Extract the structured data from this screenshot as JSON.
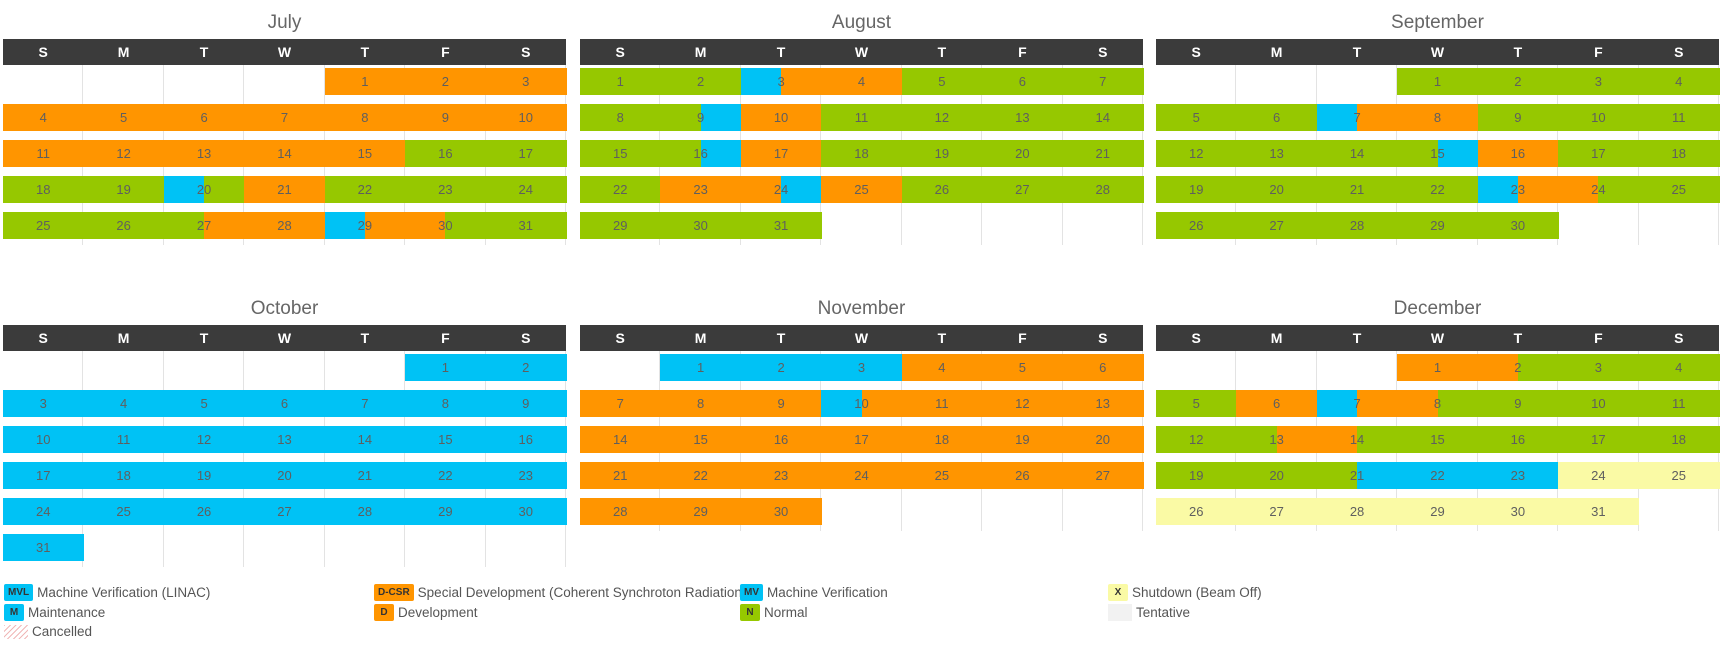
{
  "day_headers": [
    "S",
    "M",
    "T",
    "W",
    "T",
    "F",
    "S"
  ],
  "colors": {
    "N": "#96c800",
    "D": "#ff9500",
    "M": "#00c2f5",
    "X": "#fafaa5"
  },
  "months": [
    {
      "name": "July",
      "start": 4,
      "days": 31,
      "slots": "DDDDDDDDDDDDDDDDDDDDDDDDDDDDDDNNNNNNNNMNDDNNNNNNNNNNNDDDMDDNNNNNNNNN"
    },
    {
      "name": "August",
      "start": 0,
      "days": 31,
      "slots": "NNNNMDDDNNNNNNNNNMDDNNNNNNNNNNNMDDNNNNNNNNNNDDDMDDNNNNNNNNNNNNNMDDN"
    },
    {
      "name": "September",
      "start": 3,
      "days": 30,
      "slots": "NNNNNNNNNNNNMDDDNNNNNNNNNNNNNMDDNNNNNNNNNNNNMDDNNNNNNNNNNNNNNMMMMM"
    },
    {
      "name": "October",
      "start": 5,
      "days": 31,
      "slots": "MMMMMMMMMMMMMMMMMMMMMMMMMMMMMMMMMMMMMMMMMMMMMMMMMMMMMMMMMMMMMMMM"
    },
    {
      "name": "November",
      "start": 1,
      "days": 30,
      "slots": "MMMMMMDDDDDDDDDDDDMDDDDDDDDDDDDDDDDDDDDDDDDDDDDDDDDDDDDDDDDDDD"
    },
    {
      "name": "December",
      "start": 3,
      "days": 31,
      "slots": "DDDNNNNNNNDDMDDNNNNNNNNNNDDNNNNNNNNNNNNNNMMMMMXXXXXXXXXXXXXXXXXX"
    }
  ],
  "legend": [
    {
      "code": "MVL",
      "label": "Machine Verification (LINAC)",
      "color": "#00c2f5"
    },
    {
      "code": "D-CSR",
      "label": "Special Development (Coherent Synchroton Radiation)",
      "color": "#ff9500"
    },
    {
      "code": "MV",
      "label": "Machine Verification",
      "color": "#00c2f5"
    },
    {
      "code": "X",
      "label": "Shutdown (Beam Off)",
      "color": "#fafaa5"
    },
    {
      "code": "M",
      "label": "Maintenance",
      "color": "#00c2f5"
    },
    {
      "code": "D",
      "label": "Development",
      "color": "#ff9500"
    },
    {
      "code": "N",
      "label": "Normal",
      "color": "#96c800"
    },
    {
      "code": "",
      "label": "Tentative",
      "color": "#f2f2f2"
    },
    {
      "code": "",
      "label": "Cancelled",
      "color": ""
    }
  ]
}
